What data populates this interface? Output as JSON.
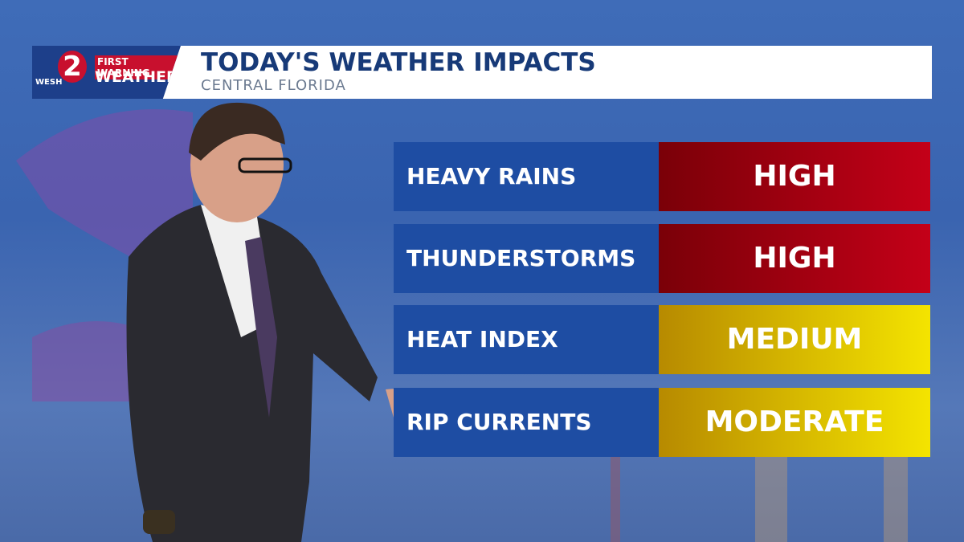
{
  "logo": {
    "network": "WESH",
    "channel": "2",
    "brand_top": "FIRST WARNING",
    "brand_bottom": "WEATHER"
  },
  "header": {
    "title": "TODAY'S WEATHER IMPACTS",
    "subtitle": "CENTRAL FLORIDA"
  },
  "impacts": [
    {
      "label": "HEAVY RAINS",
      "level": "HIGH"
    },
    {
      "label": "THUNDERSTORMS",
      "level": "HIGH"
    },
    {
      "label": "HEAT INDEX",
      "level": "MEDIUM"
    },
    {
      "label": "RIP CURRENTS",
      "level": "MODERATE"
    }
  ]
}
